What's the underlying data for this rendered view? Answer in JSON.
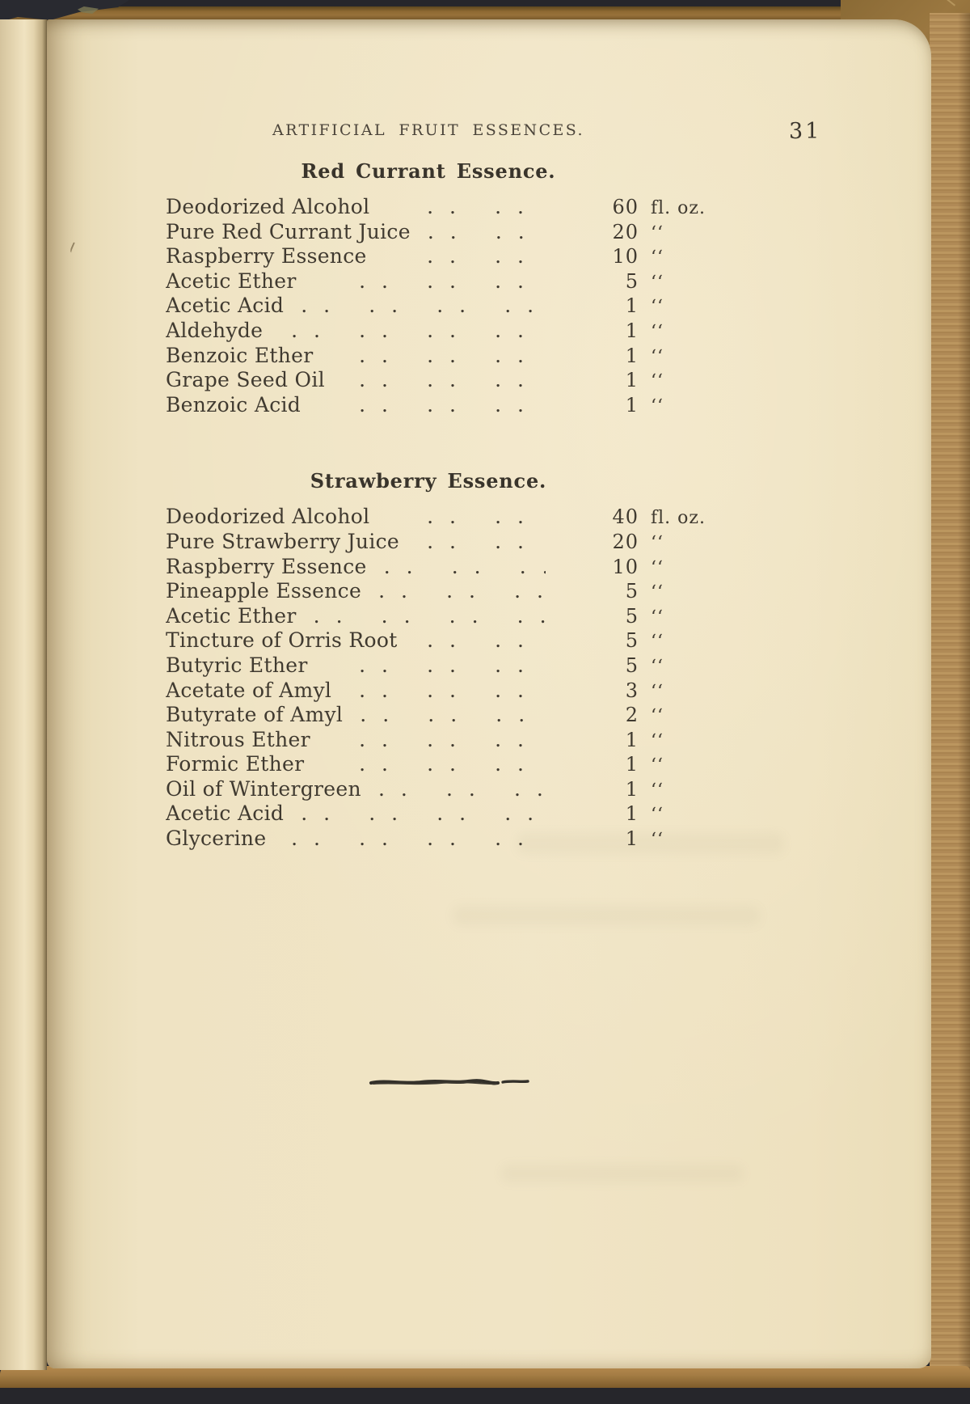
{
  "document": {
    "running_header": "ARTIFICIAL FRUIT ESSENCES.",
    "page_number": "31"
  },
  "sections": [
    {
      "title": "Red Currant Essence.",
      "rows": [
        {
          "name": "Deodorized Alcohol",
          "dots": 2,
          "qty": "60",
          "unit": "fl. oz."
        },
        {
          "name": "Pure Red Currant Juice",
          "dots": 2,
          "qty": "20",
          "unit": "‘‘"
        },
        {
          "name": "Raspberry Essence",
          "dots": 2,
          "qty": "10",
          "unit": "‘‘"
        },
        {
          "name": "Acetic Ether",
          "dots": 3,
          "qty": "5",
          "unit": "‘‘"
        },
        {
          "name": "Acetic Acid",
          "dots": 4,
          "qty": "1",
          "unit": "‘‘"
        },
        {
          "name": "Aldehyde",
          "dots": 4,
          "qty": "1",
          "unit": "‘‘"
        },
        {
          "name": "Benzoic Ether",
          "dots": 3,
          "qty": "1",
          "unit": "‘‘"
        },
        {
          "name": "Grape Seed Oil",
          "dots": 3,
          "qty": "1",
          "unit": "‘‘"
        },
        {
          "name": "Benzoic Acid",
          "dots": 3,
          "qty": "1",
          "unit": "‘‘"
        }
      ]
    },
    {
      "title": "Strawberry Essence.",
      "rows": [
        {
          "name": "Deodorized Alcohol",
          "dots": 2,
          "qty": "40",
          "unit": "fl. oz."
        },
        {
          "name": "Pure Strawberry Juice",
          "dots": 2,
          "qty": "20",
          "unit": "‘‘"
        },
        {
          "name": "Raspberry Essence",
          "dots": 3,
          "qty": "10",
          "unit": "‘‘"
        },
        {
          "name": "Pineapple Essence",
          "dots": 3,
          "qty": "5",
          "unit": "‘‘"
        },
        {
          "name": "Acetic Ether",
          "dots": 4,
          "qty": "5",
          "unit": "‘‘"
        },
        {
          "name": "Tincture of Orris Root",
          "dots": 2,
          "qty": "5",
          "unit": "‘‘"
        },
        {
          "name": "Butyric Ether",
          "dots": 3,
          "qty": "5",
          "unit": "‘‘"
        },
        {
          "name": "Acetate of Amyl",
          "dots": 3,
          "qty": "3",
          "unit": "‘‘"
        },
        {
          "name": "Butyrate of Amyl",
          "dots": 3,
          "qty": "2",
          "unit": "‘‘"
        },
        {
          "name": "Nitrous Ether",
          "dots": 3,
          "qty": "1",
          "unit": "‘‘"
        },
        {
          "name": "Formic Ether",
          "dots": 3,
          "qty": "1",
          "unit": "‘‘"
        },
        {
          "name": "Oil of Wintergreen",
          "dots": 3,
          "qty": "1",
          "unit": "‘‘"
        },
        {
          "name": "Acetic Acid",
          "dots": 4,
          "qty": "1",
          "unit": "‘‘"
        },
        {
          "name": "Glycerine",
          "dots": 4,
          "qty": "1",
          "unit": "‘‘"
        }
      ]
    }
  ],
  "colors": {
    "paper": "#efe3c4",
    "ink": "#403a30",
    "cover_cloth": "#26262b",
    "leather": "#8f6a33",
    "page_edges": "#b48e5b"
  }
}
